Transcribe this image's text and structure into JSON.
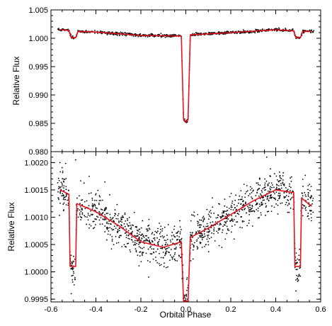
{
  "chart_data": [
    {
      "type": "scatter",
      "panel": "top",
      "title": "",
      "xlabel": "",
      "ylabel": "Relative Flux",
      "xlim": [
        -0.6,
        0.6
      ],
      "ylim": [
        0.98,
        1.005
      ],
      "xticks": [
        -0.6,
        -0.4,
        -0.2,
        0.0,
        0.2,
        0.4,
        0.6
      ],
      "yticks": [
        0.98,
        0.985,
        0.99,
        0.995,
        1.0,
        1.005
      ],
      "ytick_labels": [
        "0.980",
        "0.985",
        "0.990",
        "0.995",
        "1.000",
        "1.005"
      ],
      "grid": false,
      "series": [
        {
          "kind": "observed points",
          "color": "#000000",
          "x_range": [
            -0.57,
            0.57
          ],
          "baseline_points": [
            [
              -0.56,
              1.0013
            ],
            [
              -0.4,
              1.0012
            ],
            [
              -0.2,
              1.0006
            ],
            [
              -0.03,
              1.0002
            ],
            [
              0.03,
              1.0005
            ],
            [
              0.2,
              1.0009
            ],
            [
              0.4,
              1.0015
            ],
            [
              0.56,
              1.0012
            ]
          ],
          "dip_points": [
            [
              -0.5,
              1.0002
            ],
            [
              0.0,
              0.9852
            ],
            [
              0.5,
              1.0002
            ]
          ]
        },
        {
          "kind": "model curve",
          "color": "#e8141e",
          "points": [
            [
              -0.56,
              1.0015
            ],
            [
              -0.52,
              1.0014
            ],
            [
              -0.51,
              1.0001
            ],
            [
              -0.49,
              1.0001
            ],
            [
              -0.48,
              1.0012
            ],
            [
              -0.4,
              1.0011
            ],
            [
              -0.2,
              1.0005
            ],
            [
              -0.02,
              1.0004
            ],
            [
              -0.01,
              0.9857
            ],
            [
              0.0,
              0.9852
            ],
            [
              0.01,
              0.9857
            ],
            [
              0.02,
              1.0006
            ],
            [
              0.2,
              1.001
            ],
            [
              0.4,
              1.0015
            ],
            [
              0.48,
              1.0013
            ],
            [
              0.49,
              1.0001
            ],
            [
              0.51,
              1.0001
            ],
            [
              0.52,
              1.0012
            ],
            [
              0.56,
              1.0012
            ]
          ]
        }
      ]
    },
    {
      "type": "scatter",
      "panel": "bottom",
      "title": "",
      "xlabel": "Orbital Phase",
      "ylabel": "Relative Flux",
      "xlim": [
        -0.6,
        0.6
      ],
      "ylim": [
        0.99945,
        1.0022
      ],
      "xticks": [
        -0.6,
        -0.4,
        -0.2,
        0.0,
        0.2,
        0.4,
        0.6
      ],
      "xtick_labels": [
        "-0.6",
        "-0.4",
        "-0.2",
        "0.0",
        "0.2",
        "0.4",
        "0.6"
      ],
      "yticks": [
        0.9995,
        1.0,
        1.0005,
        1.001,
        1.0015,
        1.002
      ],
      "ytick_labels": [
        "0.9995",
        "1.0000",
        "1.0005",
        "1.0010",
        "1.0015",
        "1.0020"
      ],
      "grid": false,
      "series": [
        {
          "kind": "observed points",
          "color": "#000000",
          "x_range": [
            -0.57,
            0.57
          ],
          "scatter_about_model": 0.00018,
          "outlier_points": [
            [
              -0.56,
              1.002
            ],
            [
              -0.49,
              1.00205
            ],
            [
              0.36,
              1.0021
            ],
            [
              0.55,
              1.0016
            ],
            [
              -0.51,
              0.9996
            ],
            [
              0.49,
              0.99965
            ]
          ]
        },
        {
          "kind": "model curve",
          "color": "#e8141e",
          "points": [
            [
              -0.56,
              1.0015
            ],
            [
              -0.52,
              1.00142
            ],
            [
              -0.515,
              1.0001
            ],
            [
              -0.49,
              1.0001
            ],
            [
              -0.485,
              1.00125
            ],
            [
              -0.4,
              1.0011
            ],
            [
              -0.3,
              1.00085
            ],
            [
              -0.2,
              1.00055
            ],
            [
              -0.1,
              1.00045
            ],
            [
              -0.02,
              1.00055
            ],
            [
              -0.01,
              0.99945
            ],
            [
              0.01,
              0.99945
            ],
            [
              0.02,
              1.00063
            ],
            [
              0.1,
              1.0008
            ],
            [
              0.2,
              1.00105
            ],
            [
              0.3,
              1.0013
            ],
            [
              0.4,
              1.0015
            ],
            [
              0.48,
              1.00145
            ],
            [
              0.485,
              1.0001
            ],
            [
              0.51,
              1.0001
            ],
            [
              0.515,
              1.00135
            ],
            [
              0.56,
              1.0012
            ]
          ]
        }
      ]
    }
  ]
}
